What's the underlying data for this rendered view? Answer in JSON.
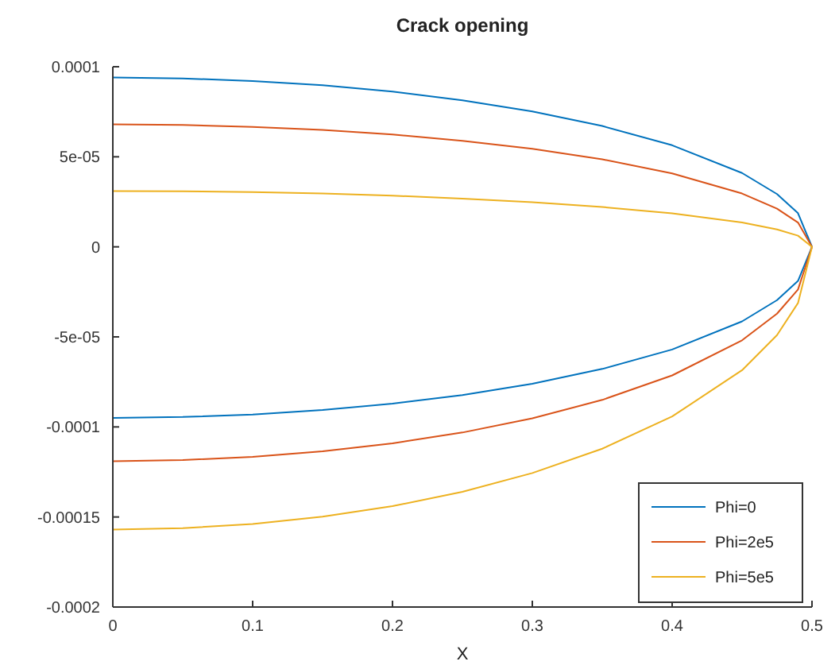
{
  "chart_data": {
    "type": "line",
    "title": "Crack opening",
    "xlabel": "X",
    "xlim": [
      0,
      0.5
    ],
    "xticks": [
      0,
      0.1,
      0.2,
      0.3,
      0.4,
      0.5
    ],
    "ylim": [
      -0.0002,
      0.0001
    ],
    "yticks": [
      {
        "value": -0.0002,
        "label": "-0.0002"
      },
      {
        "value": -0.00015,
        "label": "-0.00015"
      },
      {
        "value": -0.0001,
        "label": "-0.0001"
      },
      {
        "value": -5e-05,
        "label": "-5e-05"
      },
      {
        "value": 0,
        "label": "0"
      },
      {
        "value": 5e-05,
        "label": "5e-05"
      },
      {
        "value": 0.0001,
        "label": "0.0001"
      }
    ],
    "grid": false,
    "legend": "bottom right",
    "line_style": "solid",
    "marker": "none",
    "series": [
      {
        "name": "Phi=0",
        "color": "#0072bd",
        "x": [
          0,
          0.05,
          0.1,
          0.15,
          0.2,
          0.25,
          0.3,
          0.35,
          0.4,
          0.45,
          0.475,
          0.49,
          0.5,
          0.49,
          0.475,
          0.45,
          0.4,
          0.35,
          0.3,
          0.25,
          0.2,
          0.15,
          0.1,
          0.05,
          0
        ],
        "values": [
          9.4e-05,
          9.35e-05,
          9.21e-05,
          8.97e-05,
          8.62e-05,
          8.14e-05,
          7.52e-05,
          6.71e-05,
          5.64e-05,
          4.1e-05,
          2.93e-05,
          1.87e-05,
          0,
          -1.89e-05,
          -2.96e-05,
          -4.14e-05,
          -5.7e-05,
          -6.78e-05,
          -7.6e-05,
          -8.23e-05,
          -8.71e-05,
          -9.06e-05,
          -9.31e-05,
          -9.45e-05,
          -9.5e-05
        ]
      },
      {
        "name": "Phi=2e5",
        "color": "#d95319",
        "x": [
          0,
          0.05,
          0.1,
          0.15,
          0.2,
          0.25,
          0.3,
          0.35,
          0.4,
          0.45,
          0.475,
          0.49,
          0.5,
          0.49,
          0.475,
          0.45,
          0.4,
          0.35,
          0.3,
          0.25,
          0.2,
          0.15,
          0.1,
          0.05,
          0
        ],
        "values": [
          6.8e-05,
          6.77e-05,
          6.66e-05,
          6.49e-05,
          6.24e-05,
          5.89e-05,
          5.44e-05,
          4.86e-05,
          4.08e-05,
          2.96e-05,
          2.12e-05,
          1.35e-05,
          0,
          -2.37e-05,
          -3.71e-05,
          -5.19e-05,
          -7.14e-05,
          -8.5e-05,
          -9.52e-05,
          -0.0001031,
          -0.0001091,
          -0.0001135,
          -0.0001166,
          -0.0001184,
          -0.000119
        ]
      },
      {
        "name": "Phi=5e5",
        "color": "#edb120",
        "x": [
          0,
          0.05,
          0.1,
          0.15,
          0.2,
          0.25,
          0.3,
          0.35,
          0.4,
          0.45,
          0.475,
          0.49,
          0.5,
          0.49,
          0.475,
          0.45,
          0.4,
          0.35,
          0.3,
          0.25,
          0.2,
          0.15,
          0.1,
          0.05,
          0
        ],
        "values": [
          3.1e-05,
          3.08e-05,
          3.04e-05,
          2.96e-05,
          2.84e-05,
          2.68e-05,
          2.48e-05,
          2.21e-05,
          1.86e-05,
          1.35e-05,
          9.7e-06,
          6.2e-06,
          0,
          -3.12e-05,
          -4.9e-05,
          -6.85e-05,
          -9.42e-05,
          -0.0001121,
          -0.0001256,
          -0.000136,
          -0.000144,
          -0.0001498,
          -0.0001539,
          -0.0001562,
          -0.000157
        ]
      }
    ]
  }
}
